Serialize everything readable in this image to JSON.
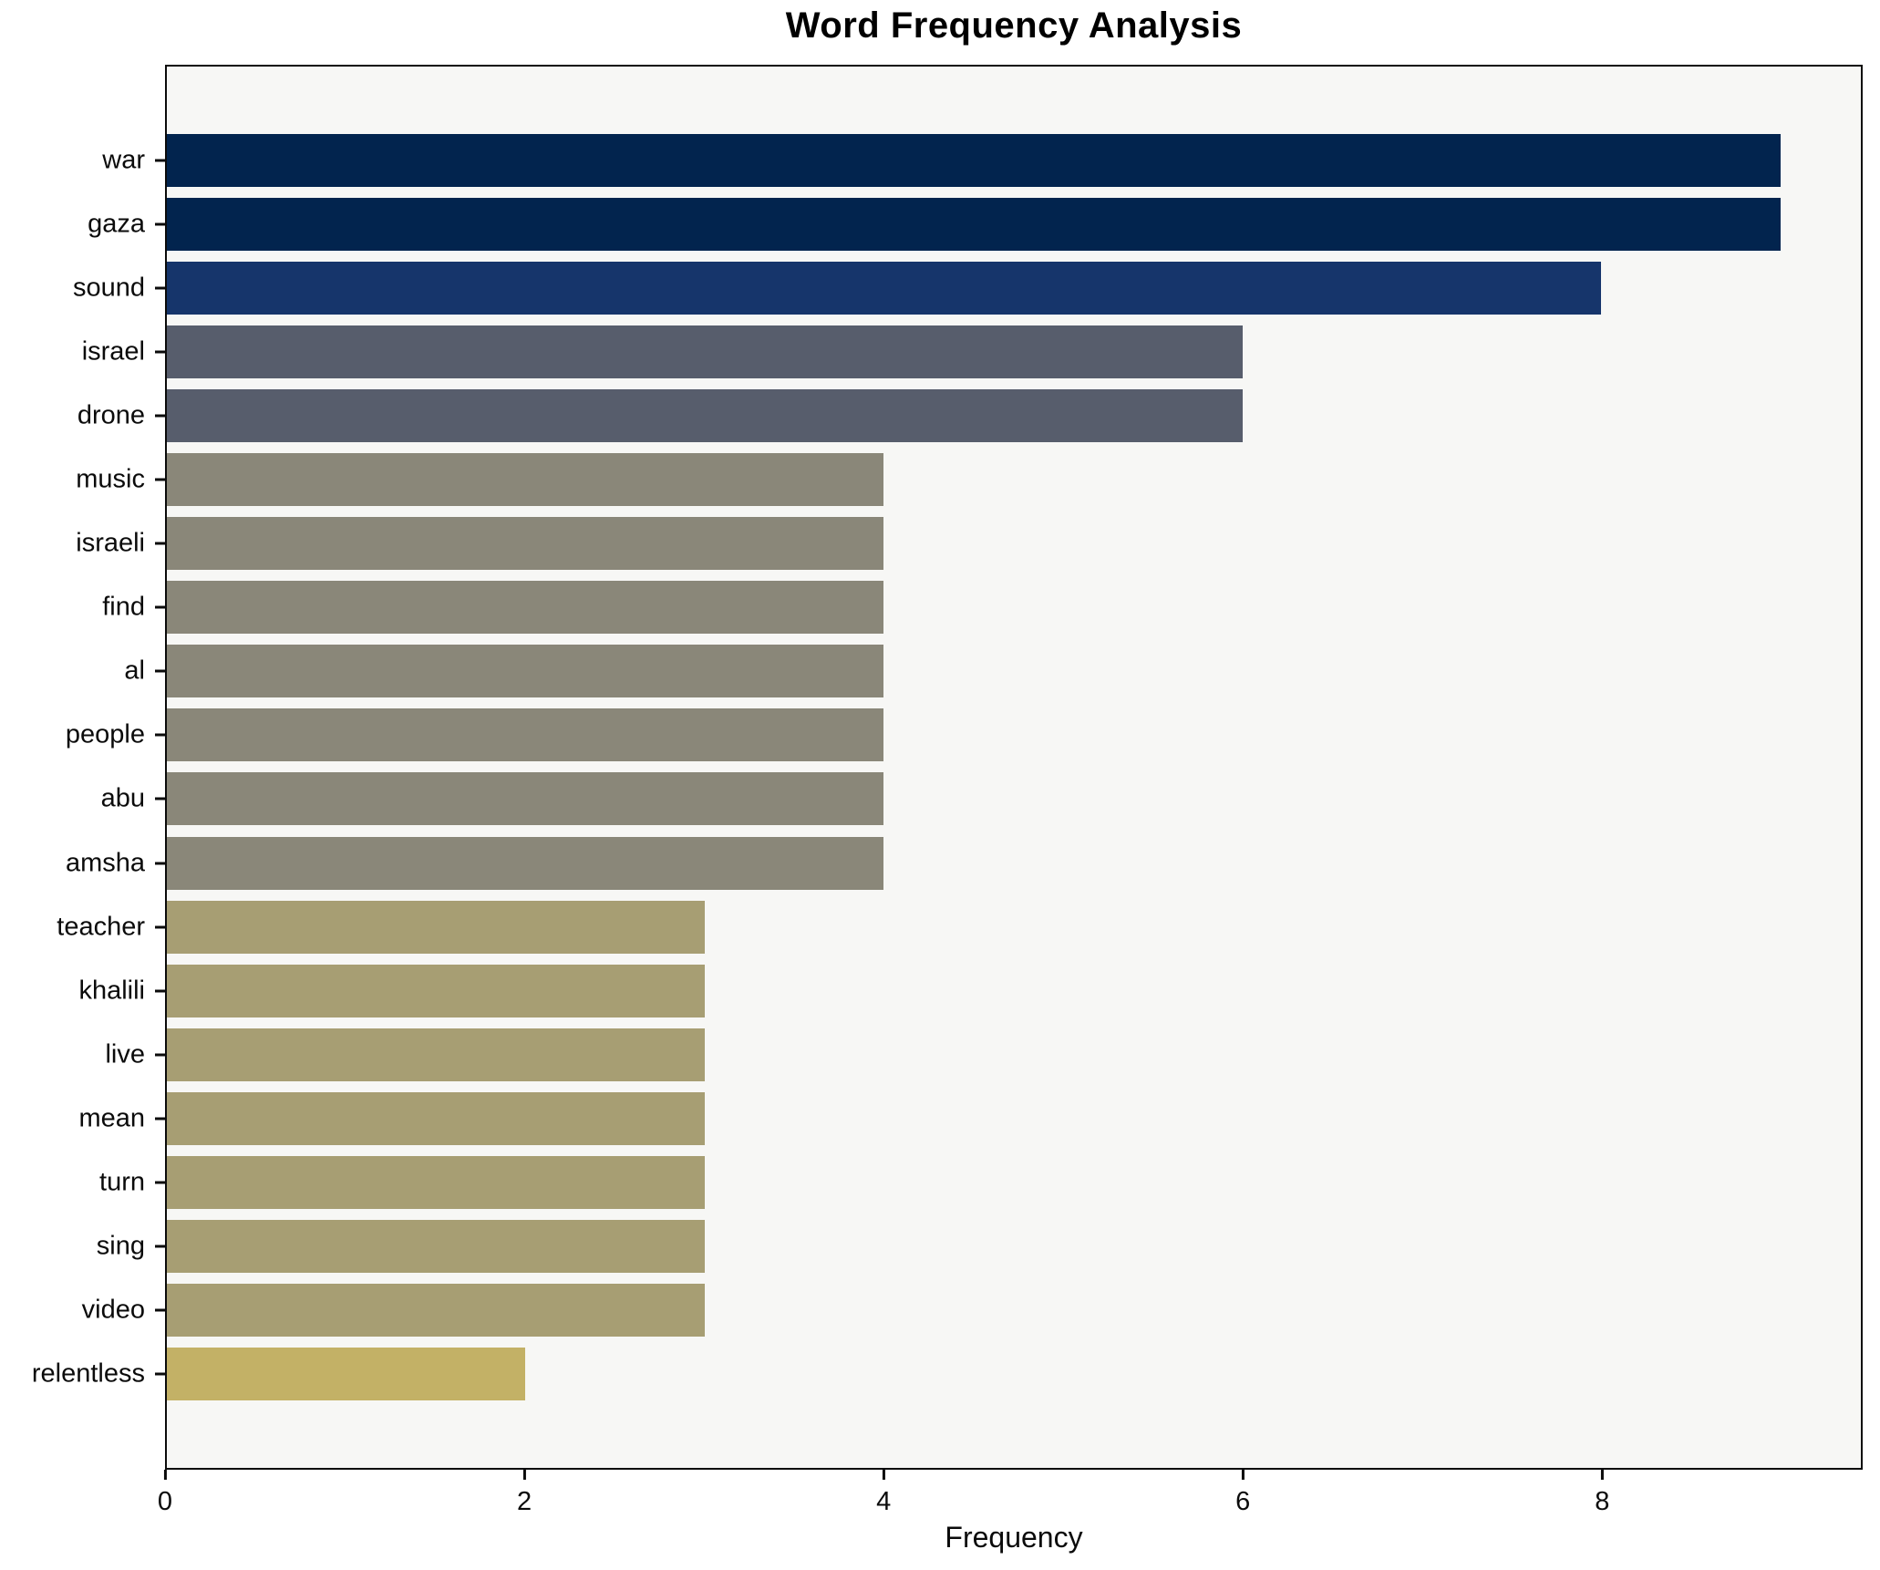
{
  "title": "Word Frequency Analysis",
  "xlabel": "Frequency",
  "colors": {
    "figure_bg": "#ffffff",
    "plot_bg": "#f7f7f5",
    "spine": "#0b0b0b",
    "text": "#000000"
  },
  "chart_data": {
    "type": "bar",
    "orientation": "horizontal",
    "title": "Word Frequency Analysis",
    "xlabel": "Frequency",
    "ylabel": "",
    "categories": [
      "war",
      "gaza",
      "sound",
      "israel",
      "drone",
      "music",
      "israeli",
      "find",
      "al",
      "people",
      "abu",
      "amsha",
      "teacher",
      "khalili",
      "live",
      "mean",
      "turn",
      "sing",
      "video",
      "relentless"
    ],
    "values": [
      9,
      9,
      8,
      6,
      6,
      4,
      4,
      4,
      4,
      4,
      4,
      4,
      3,
      3,
      3,
      3,
      3,
      3,
      3,
      2
    ],
    "bar_colors": [
      "#02244e",
      "#02244e",
      "#16356b",
      "#575d6c",
      "#575d6c",
      "#8a8779",
      "#8a8779",
      "#8a8779",
      "#8a8779",
      "#8a8779",
      "#8a8779",
      "#8a8779",
      "#a79e73",
      "#a79e73",
      "#a79e73",
      "#a79e73",
      "#a79e73",
      "#a79e73",
      "#a79e73",
      "#c3b166"
    ],
    "xlim": [
      0,
      9.45
    ],
    "x_ticks": [
      0,
      2,
      4,
      6,
      8
    ],
    "grid": false,
    "legend": null,
    "plot_bg": "#f7f7f5",
    "figure_bg": "#ffffff"
  }
}
